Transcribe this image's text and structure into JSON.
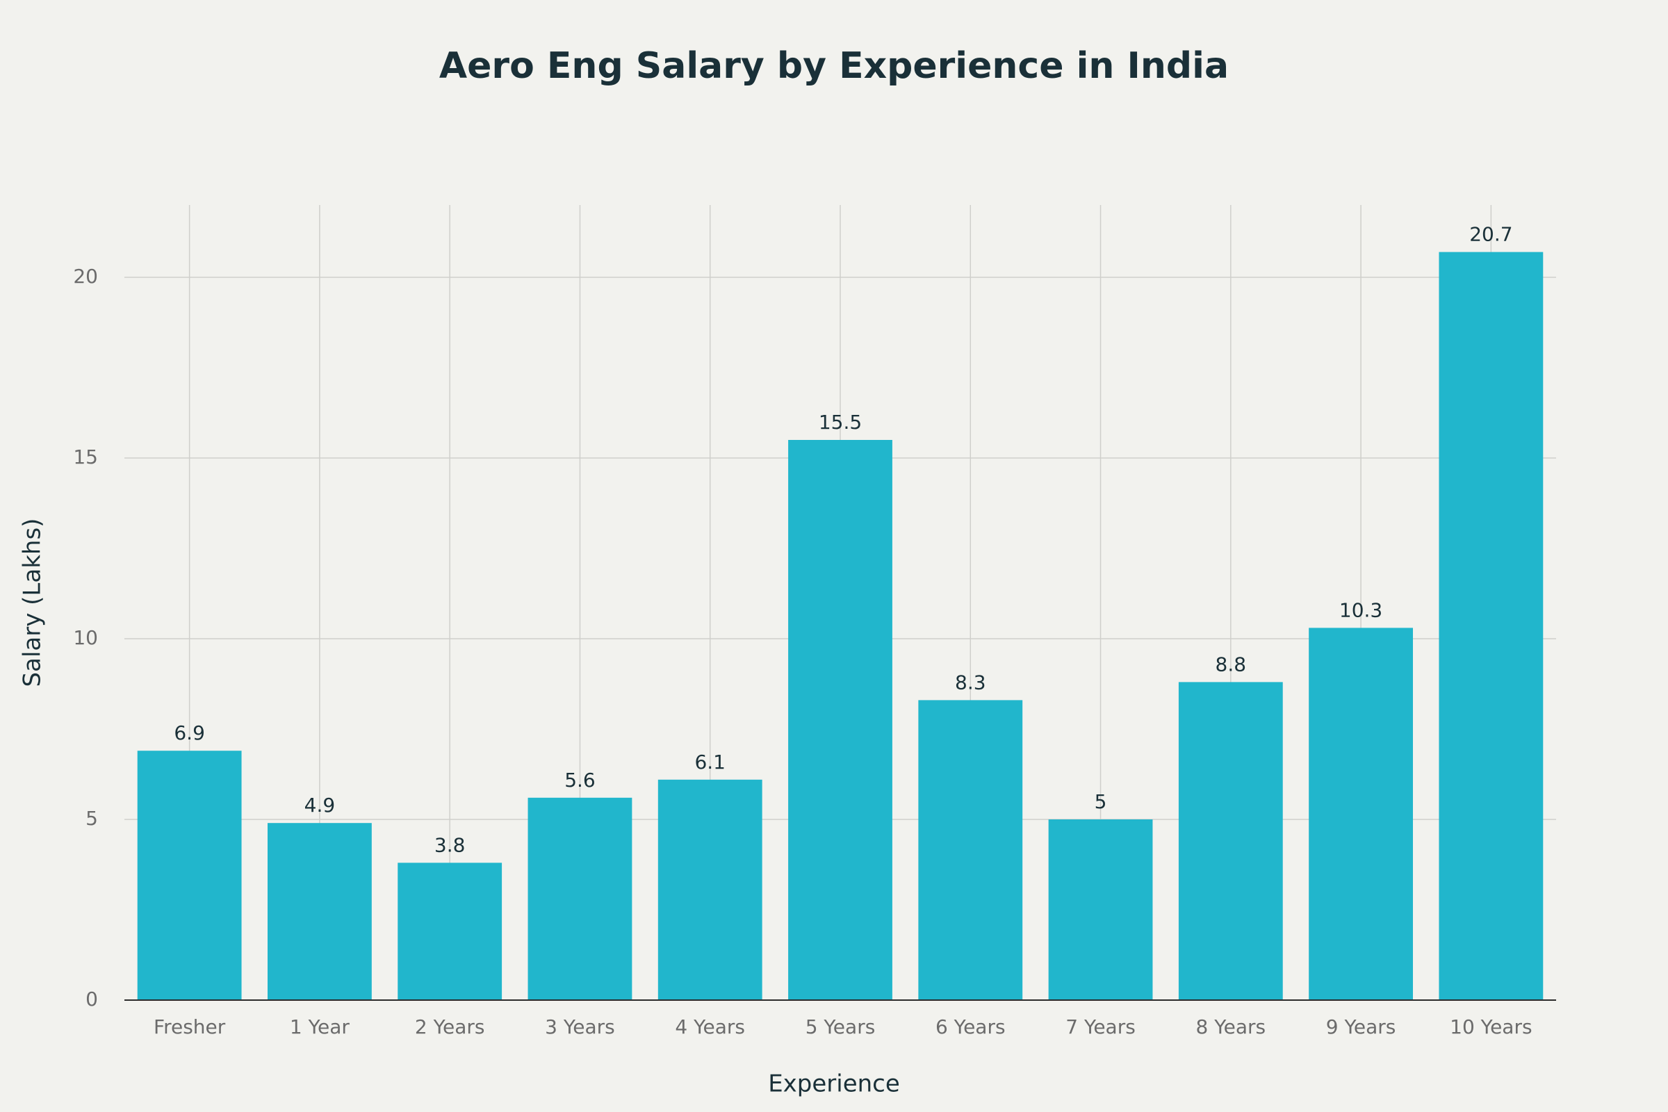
{
  "chart_data": {
    "type": "bar",
    "title": "Aero Eng Salary by Experience in India",
    "x_label": "Experience",
    "y_label": "Salary (Lakhs)",
    "categories": [
      "Fresher",
      "1 Year",
      "2 Years",
      "3 Years",
      "4 Years",
      "5 Years",
      "6 Years",
      "7 Years",
      "8 Years",
      "9 Years",
      "10 Years"
    ],
    "values": [
      6.9,
      4.9,
      3.8,
      5.6,
      6.1,
      15.5,
      8.3,
      5,
      8.8,
      10.3,
      20.7
    ],
    "color": "#21b6cc",
    "ylim": [
      0,
      22
    ],
    "yticks": [
      0,
      5,
      10,
      15,
      20
    ],
    "grid": true
  }
}
